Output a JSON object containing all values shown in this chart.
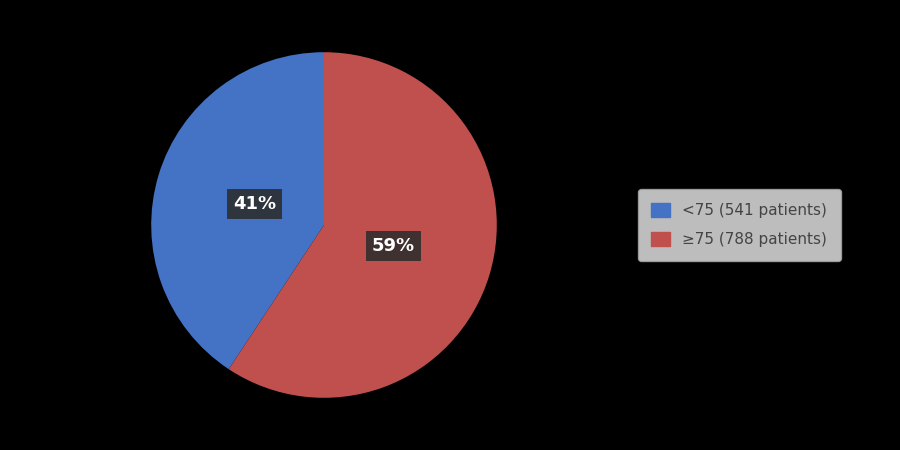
{
  "values": [
    541,
    788
  ],
  "labels": [
    "<75 (541 patients)",
    "≥75 (788 patients)"
  ],
  "colors": [
    "#4472C4",
    "#C0504D"
  ],
  "pct_labels": [
    "41%",
    "59%"
  ],
  "background_color": "#000000",
  "legend_bg": "#EEEEEE",
  "legend_edge": "#AAAAAA",
  "text_label_bg": "#2D2D2D",
  "text_label_color": "#FFFFFF",
  "startangle": 90,
  "figsize": [
    9.0,
    4.5
  ],
  "dpi": 100
}
